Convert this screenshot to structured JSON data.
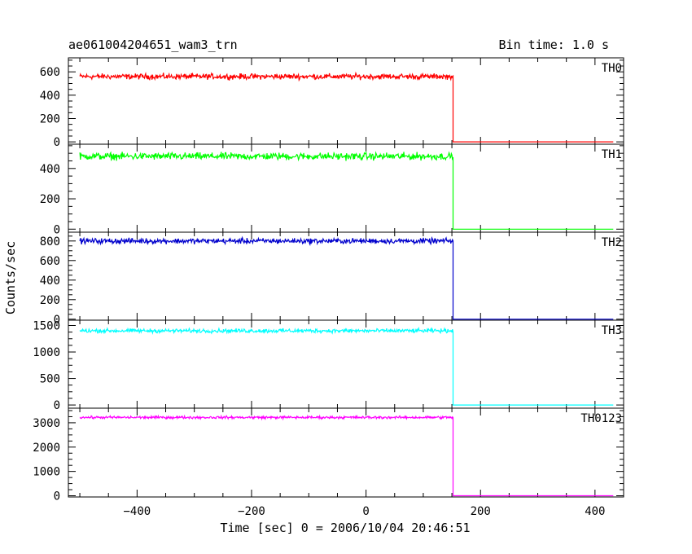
{
  "chart_data": {
    "type": "line",
    "title": "ae061004204651_wam3_trn",
    "bin_time_label": "Bin time: 1.0 s",
    "xlabel": "Time [sec] 0 = 2006/10/04 20:46:51",
    "ylabel": "Counts/sec",
    "xlim": [
      -520,
      450
    ],
    "x_ticks": [
      -400,
      -200,
      0,
      200,
      400
    ],
    "x_tick_labels": [
      "−400",
      "−200",
      "0",
      "200",
      "400"
    ],
    "drop_time": 152,
    "x_start": -500,
    "x_end": 432,
    "grid": false,
    "panels": [
      {
        "name": "TH0",
        "color": "#ff0000",
        "ylim": [
          -20,
          720
        ],
        "yticks": [
          0,
          200,
          400,
          600
        ],
        "ytick_labels": [
          "0",
          "200",
          "400",
          "600"
        ],
        "pre_mean": 560,
        "noise_amplitude": 35,
        "post_level": 0
      },
      {
        "name": "TH1",
        "color": "#00ff00",
        "ylim": [
          -20,
          560
        ],
        "yticks": [
          0,
          200,
          400
        ],
        "ytick_labels": [
          "0",
          "200",
          "400"
        ],
        "pre_mean": 480,
        "noise_amplitude": 35,
        "post_level": 0
      },
      {
        "name": "TH2",
        "color": "#0000cc",
        "ylim": [
          -10,
          890
        ],
        "yticks": [
          0,
          200,
          400,
          600,
          800
        ],
        "ytick_labels": [
          "0",
          "200",
          "400",
          "600",
          "800"
        ],
        "pre_mean": 800,
        "noise_amplitude": 40,
        "post_level": 0
      },
      {
        "name": "TH3",
        "color": "#00ffff",
        "ylim": [
          -60,
          1600
        ],
        "yticks": [
          0,
          500,
          1000,
          1500
        ],
        "ytick_labels": [
          "0",
          "500",
          "1000",
          "1500"
        ],
        "pre_mean": 1400,
        "noise_amplitude": 55,
        "post_level": 0
      },
      {
        "name": "TH0123",
        "color": "#ff00ff",
        "ylim": [
          -50,
          3600
        ],
        "yticks": [
          0,
          1000,
          2000,
          3000
        ],
        "ytick_labels": [
          "0",
          "1000",
          "2000",
          "3000"
        ],
        "pre_mean": 3220,
        "noise_amplitude": 80,
        "post_level": 0
      }
    ]
  }
}
